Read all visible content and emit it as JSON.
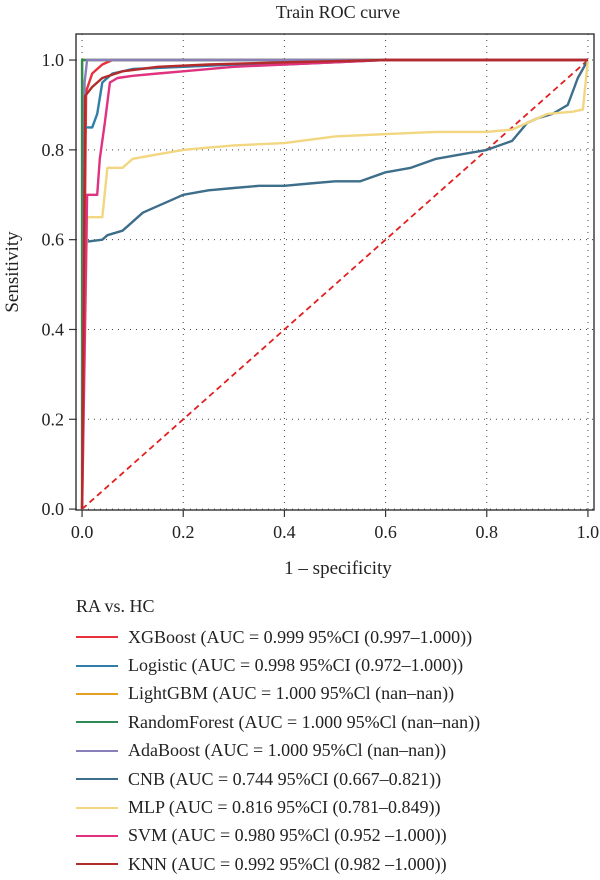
{
  "chart_data": {
    "type": "line",
    "title": "Train ROC curve",
    "xlabel": "1 – specificity",
    "ylabel": "Sensitivity",
    "xlim": [
      0,
      1
    ],
    "ylim": [
      0,
      1
    ],
    "xticks": [
      "0.0",
      "0.2",
      "0.4",
      "0.6",
      "0.8",
      "1.0"
    ],
    "yticks": [
      "0.0",
      "0.2",
      "0.4",
      "0.6",
      "0.8",
      "1.0"
    ],
    "grid": true,
    "legend_title": "RA vs. HC",
    "legend_placement": "bottom",
    "series": [
      {
        "name": "XGBoost (AUC = 0.999 95%CI (0.997–1.000))",
        "color": "#e8313a",
        "points": [
          [
            0,
            0
          ],
          [
            0.008,
            0.93
          ],
          [
            0.02,
            0.97
          ],
          [
            0.04,
            0.99
          ],
          [
            0.06,
            1.0
          ],
          [
            1,
            1
          ]
        ]
      },
      {
        "name": "Logistic (AUC = 0.998 95%CI (0.972–1.000))",
        "color": "#2f7fa8",
        "points": [
          [
            0,
            0
          ],
          [
            0.005,
            0.85
          ],
          [
            0.02,
            0.85
          ],
          [
            0.03,
            0.88
          ],
          [
            0.04,
            0.95
          ],
          [
            0.06,
            0.97
          ],
          [
            0.1,
            0.98
          ],
          [
            0.2,
            0.985
          ],
          [
            0.3,
            0.99
          ],
          [
            0.4,
            0.99
          ],
          [
            0.5,
            0.995
          ],
          [
            0.6,
            1.0
          ],
          [
            1,
            1
          ]
        ]
      },
      {
        "name": "LightGBM (AUC = 1.000 95%Cl (nan–nan))",
        "color": "#e6a020",
        "points": [
          [
            0,
            0
          ],
          [
            0,
            1
          ],
          [
            1,
            1
          ]
        ]
      },
      {
        "name": "RandomForest (AUC = 1.000 95%Cl (nan–nan))",
        "color": "#2e8b57",
        "points": [
          [
            0,
            0
          ],
          [
            0,
            1
          ],
          [
            1,
            1
          ]
        ]
      },
      {
        "name": "AdaBoost (AUC = 1.000 95%Cl (nan–nan))",
        "color": "#8a7fb8",
        "points": [
          [
            0,
            0
          ],
          [
            0.005,
            0.95
          ],
          [
            0.01,
            1.0
          ],
          [
            1,
            1
          ]
        ]
      },
      {
        "name": "CNB (AUC = 0.744 95%CI (0.667–0.821))",
        "color": "#3d6e8a",
        "points": [
          [
            0,
            0
          ],
          [
            0.005,
            0.595
          ],
          [
            0.04,
            0.6
          ],
          [
            0.05,
            0.61
          ],
          [
            0.08,
            0.62
          ],
          [
            0.1,
            0.64
          ],
          [
            0.12,
            0.66
          ],
          [
            0.14,
            0.67
          ],
          [
            0.18,
            0.69
          ],
          [
            0.2,
            0.7
          ],
          [
            0.25,
            0.71
          ],
          [
            0.3,
            0.715
          ],
          [
            0.35,
            0.72
          ],
          [
            0.4,
            0.72
          ],
          [
            0.45,
            0.725
          ],
          [
            0.5,
            0.73
          ],
          [
            0.55,
            0.73
          ],
          [
            0.6,
            0.75
          ],
          [
            0.65,
            0.76
          ],
          [
            0.7,
            0.78
          ],
          [
            0.75,
            0.79
          ],
          [
            0.8,
            0.8
          ],
          [
            0.85,
            0.82
          ],
          [
            0.88,
            0.86
          ],
          [
            0.9,
            0.87
          ],
          [
            0.93,
            0.88
          ],
          [
            0.96,
            0.9
          ],
          [
            0.97,
            0.93
          ],
          [
            0.98,
            0.96
          ],
          [
            0.99,
            0.98
          ],
          [
            1,
            1
          ]
        ]
      },
      {
        "name": "MLP (AUC = 0.816 95%CI (0.781–0.849))",
        "color": "#f2d680",
        "points": [
          [
            0,
            0
          ],
          [
            0.01,
            0.65
          ],
          [
            0.04,
            0.65
          ],
          [
            0.05,
            0.76
          ],
          [
            0.08,
            0.76
          ],
          [
            0.1,
            0.78
          ],
          [
            0.15,
            0.79
          ],
          [
            0.2,
            0.8
          ],
          [
            0.25,
            0.805
          ],
          [
            0.3,
            0.81
          ],
          [
            0.4,
            0.815
          ],
          [
            0.5,
            0.83
          ],
          [
            0.6,
            0.835
          ],
          [
            0.7,
            0.84
          ],
          [
            0.8,
            0.84
          ],
          [
            0.85,
            0.845
          ],
          [
            0.88,
            0.86
          ],
          [
            0.92,
            0.88
          ],
          [
            0.97,
            0.885
          ],
          [
            0.99,
            0.89
          ],
          [
            1,
            1
          ]
        ]
      },
      {
        "name": "SVM (AUC = 0.980 95%Cl (0.952 –1.000))",
        "color": "#e0327e",
        "points": [
          [
            0,
            0
          ],
          [
            0.01,
            0.7
          ],
          [
            0.03,
            0.7
          ],
          [
            0.035,
            0.78
          ],
          [
            0.045,
            0.86
          ],
          [
            0.055,
            0.95
          ],
          [
            0.07,
            0.96
          ],
          [
            0.1,
            0.965
          ],
          [
            0.15,
            0.97
          ],
          [
            0.2,
            0.975
          ],
          [
            0.3,
            0.985
          ],
          [
            0.4,
            0.99
          ],
          [
            0.5,
            0.995
          ],
          [
            0.6,
            1.0
          ],
          [
            1,
            1
          ]
        ]
      },
      {
        "name": "KNN (AUC = 0.992 95%Cl (0.982 –1.000))",
        "color": "#b32b2b",
        "points": [
          [
            0,
            0
          ],
          [
            0.006,
            0.92
          ],
          [
            0.02,
            0.94
          ],
          [
            0.04,
            0.96
          ],
          [
            0.08,
            0.975
          ],
          [
            0.15,
            0.985
          ],
          [
            0.25,
            0.99
          ],
          [
            0.4,
            0.995
          ],
          [
            0.6,
            1.0
          ],
          [
            1,
            1
          ]
        ]
      }
    ],
    "reference_line": {
      "color": "#e02020",
      "points": [
        [
          0,
          0
        ],
        [
          1,
          1
        ]
      ]
    }
  }
}
